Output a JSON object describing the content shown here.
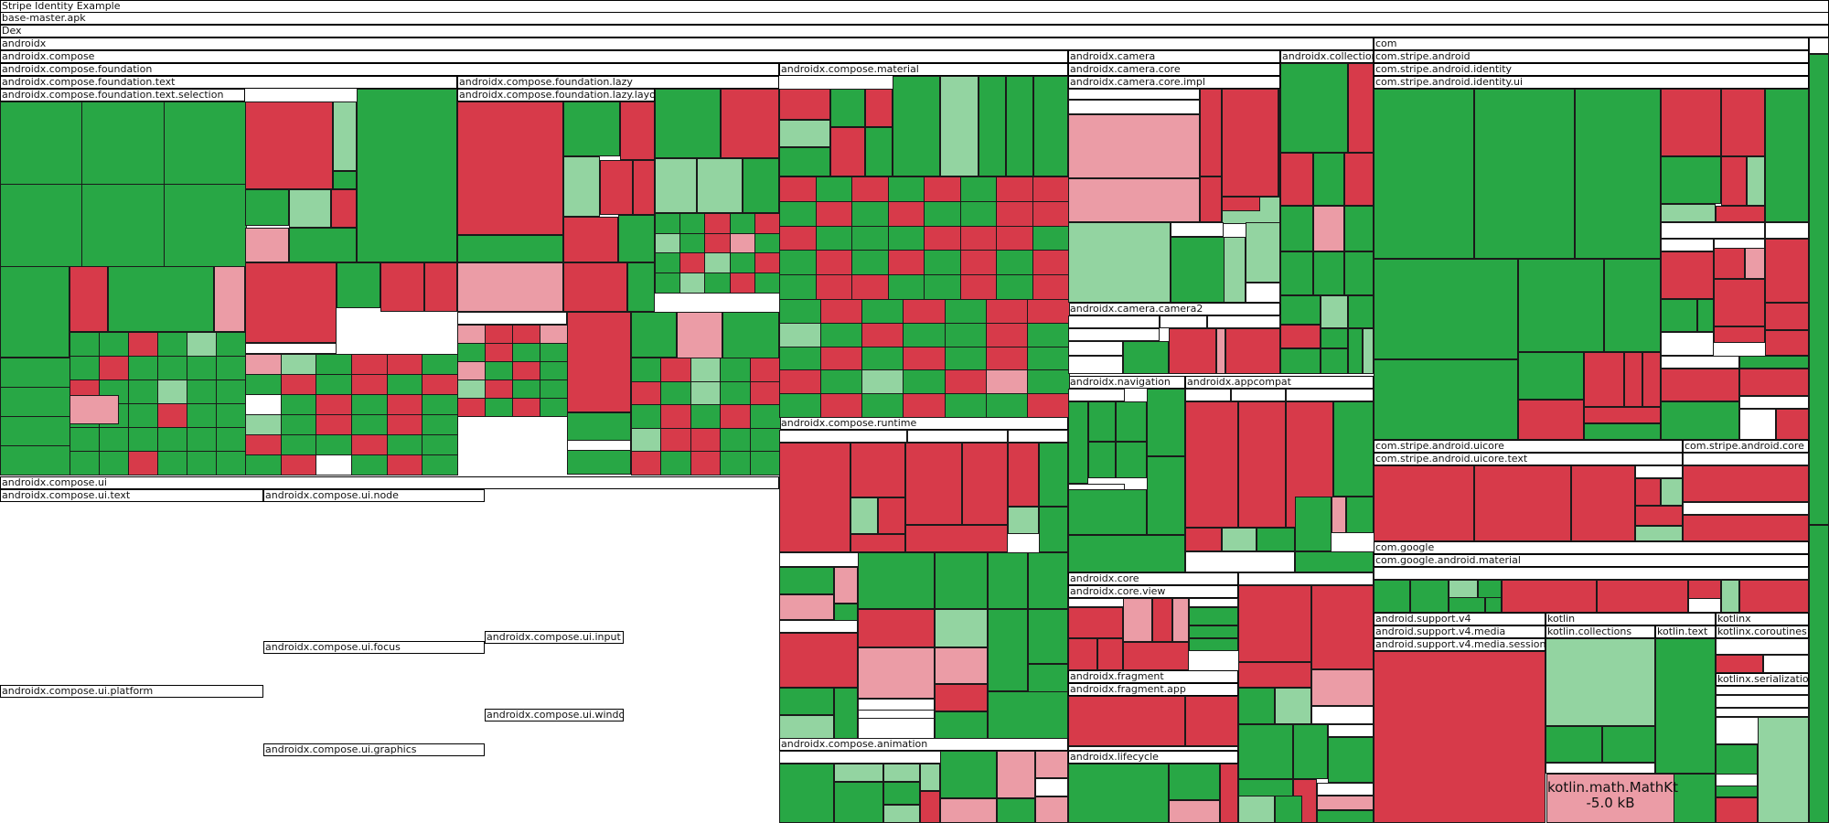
{
  "chart_data": {
    "type": "treemap",
    "title": "Stripe Identity Example",
    "colors": {
      "size_decrease_large": "#28a745",
      "size_decrease_small": "#93d4a1",
      "size_increase_large": "#d73a4a",
      "size_increase_small": "#eb9ca6",
      "unchanged": "#ffffff"
    },
    "path": [
      "Stripe Identity Example",
      "base-master.apk",
      "Dex"
    ],
    "packages": [
      {
        "label": "androidx"
      },
      {
        "label": "androidx.compose"
      },
      {
        "label": "androidx.compose.foundation"
      },
      {
        "label": "androidx.compose.foundation.text"
      },
      {
        "label": "androidx.compose.foundation.text.selection"
      },
      {
        "label": "androidx.compose.foundation.lazy"
      },
      {
        "label": "androidx.compose.foundation.lazy.layout"
      },
      {
        "label": "androidx.compose.material"
      },
      {
        "label": "androidx.compose.runtime"
      },
      {
        "label": "androidx.compose.ui"
      },
      {
        "label": "androidx.compose.ui.text"
      },
      {
        "label": "androidx.compose.ui.node"
      },
      {
        "label": "androidx.compose.ui.focus"
      },
      {
        "label": "androidx.compose.ui.input"
      },
      {
        "label": "androidx.compose.ui.window"
      },
      {
        "label": "androidx.compose.ui.graphics"
      },
      {
        "label": "androidx.compose.ui.platform"
      },
      {
        "label": "androidx.compose.animation"
      },
      {
        "label": "androidx.camera"
      },
      {
        "label": "androidx.camera.core"
      },
      {
        "label": "androidx.camera.core.impl"
      },
      {
        "label": "androidx.camera.camera2"
      },
      {
        "label": "androidx.collection"
      },
      {
        "label": "androidx.navigation"
      },
      {
        "label": "androidx.appcompat"
      },
      {
        "label": "androidx.core"
      },
      {
        "label": "androidx.core.view"
      },
      {
        "label": "androidx.fragment"
      },
      {
        "label": "androidx.fragment.app"
      },
      {
        "label": "androidx.lifecycle"
      },
      {
        "label": "com"
      },
      {
        "label": "com.stripe.android"
      },
      {
        "label": "com.stripe.android.identity"
      },
      {
        "label": "com.stripe.android.identity.ui"
      },
      {
        "label": "com.stripe.android.uicore"
      },
      {
        "label": "com.stripe.android.uicore.text"
      },
      {
        "label": "com.stripe.android.core"
      },
      {
        "label": "com.google"
      },
      {
        "label": "com.google.android.material"
      },
      {
        "label": "android.support.v4"
      },
      {
        "label": "android.support.v4.media"
      },
      {
        "label": "android.support.v4.media.session"
      },
      {
        "label": "kotlin"
      },
      {
        "label": "kotlin.collections"
      },
      {
        "label": "kotlin.text"
      },
      {
        "label": "kotlinx"
      },
      {
        "label": "kotlinx.coroutines"
      },
      {
        "label": "kotlinx.serialization"
      }
    ],
    "tooltip": {
      "name": "kotlin.math.MathKt",
      "size": "-5.0 kB"
    }
  }
}
